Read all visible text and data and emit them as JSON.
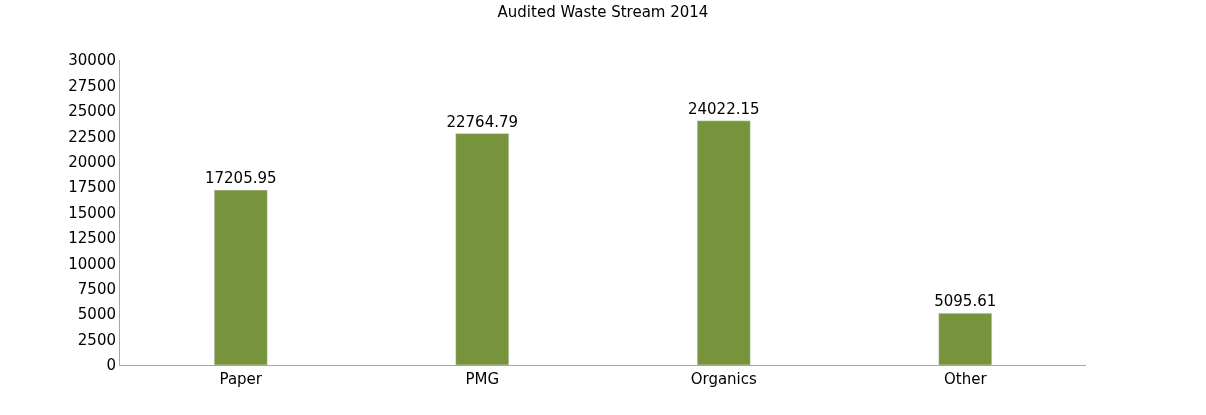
{
  "chart_data": {
    "type": "bar",
    "title": "Audited Waste Stream 2014",
    "categories": [
      "Paper",
      "PMG",
      "Organics",
      "Other"
    ],
    "values": [
      17205.95,
      22764.79,
      24022.15,
      5095.61
    ],
    "color": "#77933c",
    "ylim": [
      0,
      30000
    ],
    "yticks": [
      0,
      2500,
      5000,
      7500,
      10000,
      12500,
      15000,
      17500,
      20000,
      22500,
      25000,
      27500,
      30000
    ],
    "data_labels": true
  }
}
